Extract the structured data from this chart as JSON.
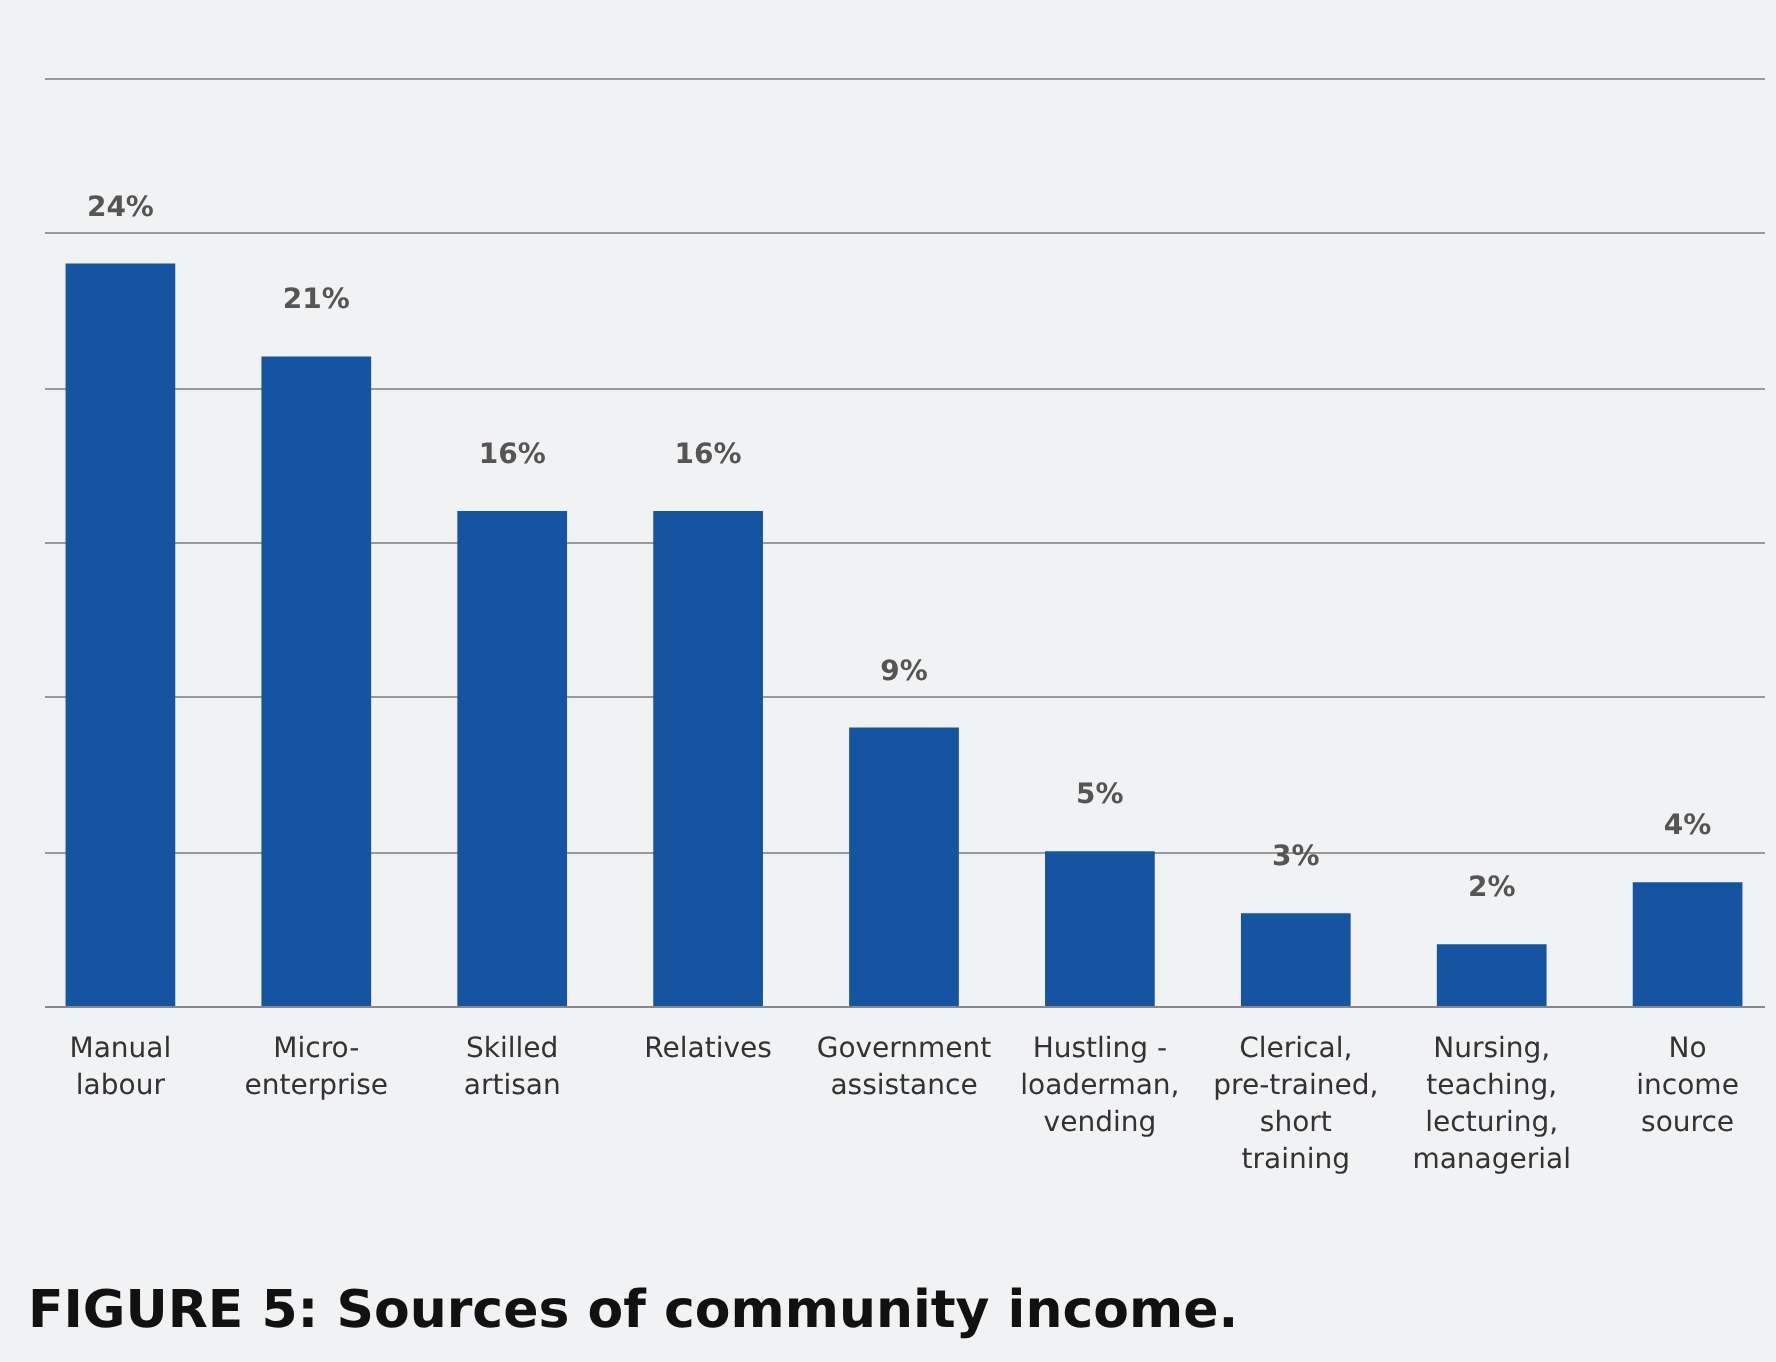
{
  "chart_data": {
    "type": "bar",
    "title": "FIGURE 5: Sources of community income.",
    "categories": [
      "Manual labour",
      "Micro- enterprise",
      "Skilled artisan",
      "Relatives",
      "Government assistance",
      "Hustling - loaderman, vending",
      "Clerical, pre-trained, short training",
      "Nursing, teaching, lecturing, managerial",
      "No income source"
    ],
    "values": [
      24,
      21,
      16,
      16,
      9,
      5,
      3,
      2,
      4
    ],
    "value_labels": [
      "24%",
      "21%",
      "16%",
      "16%",
      "9%",
      "5%",
      "3%",
      "2%",
      "4%"
    ],
    "color": "#1454a0",
    "ylim": [
      0,
      30
    ],
    "yticks": [
      {
        "value": 0,
        "label": null
      },
      {
        "value": 5,
        "label": null
      },
      {
        "value": 10,
        "label": null
      },
      {
        "value": 15,
        "label": null
      },
      {
        "value": 20,
        "label": null
      },
      {
        "value": 25,
        "label": null
      },
      {
        "value": 30,
        "label": null
      }
    ],
    "grid": "y",
    "tick_labels": "x"
  }
}
